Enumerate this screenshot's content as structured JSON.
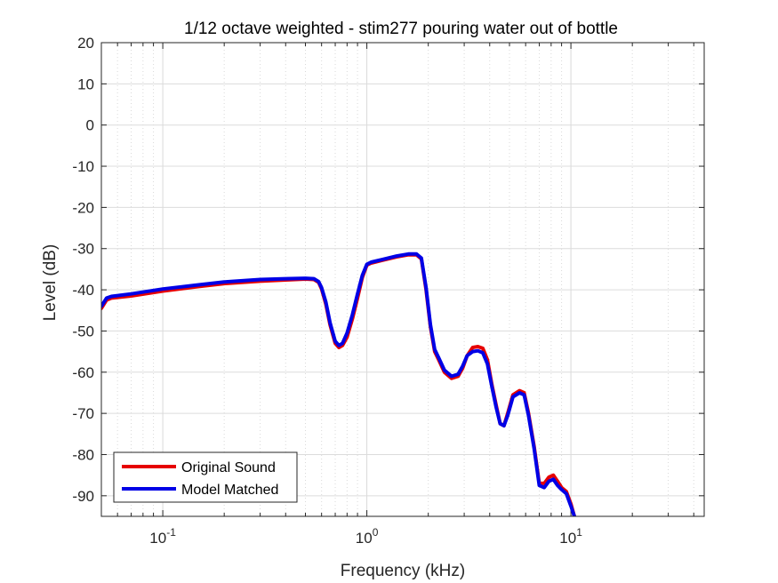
{
  "chart_data": {
    "type": "line",
    "title": "1/12 octave weighted - stim277 pouring water out of bottle",
    "xlabel": "Frequency (kHz)",
    "ylabel": "Level (dB)",
    "xscale": "log",
    "xlim": [
      0.05,
      45
    ],
    "ylim": [
      -95,
      20
    ],
    "yticks": [
      20,
      10,
      0,
      -10,
      -20,
      -30,
      -40,
      -50,
      -60,
      -70,
      -80,
      -90
    ],
    "xticks": [
      {
        "base": "10",
        "exp": "-1",
        "value": 0.1
      },
      {
        "base": "10",
        "exp": "0",
        "value": 1
      },
      {
        "base": "10",
        "exp": "1",
        "value": 10
      }
    ],
    "grid": true,
    "legend": {
      "location": "bottom-left",
      "entries": [
        "Original Sound",
        "Model Matched"
      ]
    },
    "series": [
      {
        "name": "Original Sound",
        "color": "#e60000",
        "x": [
          0.05,
          0.053,
          0.056,
          0.07,
          0.1,
          0.15,
          0.2,
          0.3,
          0.4,
          0.5,
          0.55,
          0.58,
          0.6,
          0.63,
          0.66,
          0.7,
          0.73,
          0.76,
          0.8,
          0.85,
          0.9,
          0.95,
          1.0,
          1.05,
          1.2,
          1.4,
          1.6,
          1.75,
          1.85,
          1.95,
          2.05,
          2.15,
          2.25,
          2.4,
          2.6,
          2.8,
          2.95,
          3.1,
          3.3,
          3.5,
          3.7,
          3.9,
          4.1,
          4.3,
          4.5,
          4.7,
          4.9,
          5.2,
          5.6,
          5.9,
          6.2,
          6.6,
          7.0,
          7.4,
          7.8,
          8.2,
          8.6,
          9.0,
          9.5,
          10.0,
          10.4
        ],
        "y": [
          -44.5,
          -42.5,
          -42,
          -41.5,
          -40.3,
          -39.2,
          -38.5,
          -37.9,
          -37.6,
          -37.4,
          -37.5,
          -38.2,
          -39.8,
          -43.5,
          -48.5,
          -53,
          -54,
          -53.5,
          -51.5,
          -47,
          -42,
          -37,
          -34,
          -33.5,
          -32.8,
          -32.0,
          -31.5,
          -31.5,
          -32.5,
          -40,
          -49,
          -55,
          -57,
          -60,
          -61.5,
          -61,
          -59,
          -56,
          -54,
          -53.8,
          -54.2,
          -57,
          -63,
          -68,
          -72.5,
          -73,
          -70,
          -65.5,
          -64.5,
          -65,
          -70,
          -78,
          -87,
          -87,
          -85.5,
          -85,
          -86.5,
          -88,
          -89,
          -92,
          -95
        ]
      },
      {
        "name": "Model Matched",
        "color": "#0000e6",
        "x": [
          0.05,
          0.053,
          0.056,
          0.07,
          0.1,
          0.15,
          0.2,
          0.3,
          0.4,
          0.5,
          0.55,
          0.58,
          0.6,
          0.63,
          0.66,
          0.7,
          0.73,
          0.76,
          0.8,
          0.85,
          0.9,
          0.95,
          1.0,
          1.05,
          1.2,
          1.4,
          1.6,
          1.75,
          1.85,
          1.95,
          2.05,
          2.15,
          2.25,
          2.4,
          2.6,
          2.8,
          2.95,
          3.1,
          3.3,
          3.5,
          3.7,
          3.9,
          4.1,
          4.3,
          4.5,
          4.7,
          4.9,
          5.2,
          5.6,
          5.9,
          6.2,
          6.6,
          7.0,
          7.4,
          7.8,
          8.2,
          8.6,
          9.0,
          9.5,
          10.0,
          10.4
        ],
        "y": [
          -44,
          -42,
          -41.6,
          -41,
          -39.8,
          -38.8,
          -38.1,
          -37.5,
          -37.3,
          -37.2,
          -37.3,
          -38,
          -39.5,
          -43,
          -48,
          -52.5,
          -53.5,
          -53,
          -50.5,
          -46,
          -41,
          -36.5,
          -33.8,
          -33.3,
          -32.6,
          -31.8,
          -31.3,
          -31.3,
          -32.3,
          -39.5,
          -48.5,
          -54.5,
          -56.5,
          -59.5,
          -61,
          -60.5,
          -58.5,
          -56,
          -55,
          -54.8,
          -55.3,
          -58,
          -63.5,
          -68.5,
          -72.5,
          -73,
          -70.5,
          -66,
          -65,
          -65.5,
          -70.5,
          -78.5,
          -87.5,
          -88,
          -86.5,
          -86,
          -87.5,
          -88.5,
          -89.5,
          -92.5,
          -95
        ]
      }
    ]
  }
}
